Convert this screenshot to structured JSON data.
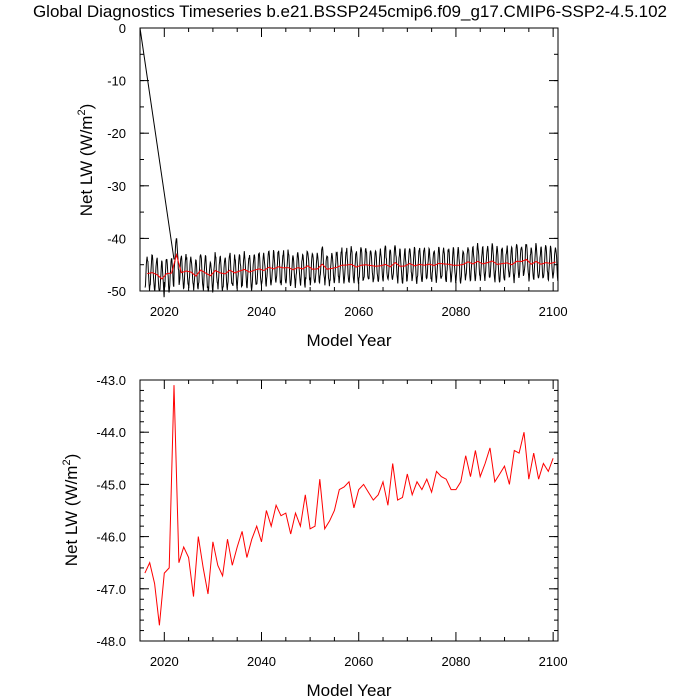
{
  "title": "Global Diagnostics Timeseries b.e21.BSSP245cmip6.f09_g17.CMIP6-SSP2-4.5.102",
  "chart_data": [
    {
      "type": "line",
      "name": "monthly-and-annual-net-lw",
      "xlabel": "Model Year",
      "ylabel": "Net LW (W/m",
      "ylabel_sup": "2",
      "ylabel_close": ")",
      "xlim": [
        2015,
        2101
      ],
      "ylim": [
        -50,
        0
      ],
      "xticks": [
        2020,
        2040,
        2060,
        2080,
        2100
      ],
      "xtick_labels": [
        "2020",
        "2040",
        "2060",
        "2080",
        "2100"
      ],
      "yticks": [
        0,
        -10,
        -20,
        -30,
        -40,
        -50
      ],
      "ytick_labels": [
        "0",
        "-10",
        "-20",
        "-30",
        "-40",
        "-50"
      ],
      "series": [
        {
          "name": "monthly",
          "color": "#000000",
          "description": "seasonal cycle oscillating roughly between -49 and -42, starting with a spurious spike from 0 in 2015 falling to about -44 by 2022",
          "spike": {
            "x": [
              2015.0,
              2022.0
            ],
            "y": [
              0,
              -44
            ]
          },
          "start_year": 2016,
          "end_year": 2100,
          "amplitude": 3.2
        },
        {
          "name": "annual mean",
          "color": "#ff0000",
          "source": "annual"
        }
      ]
    },
    {
      "type": "line",
      "name": "annual-net-lw",
      "xlabel": "Model Year",
      "ylabel": "Net LW (W/m",
      "ylabel_sup": "2",
      "ylabel_close": ")",
      "xlim": [
        2015,
        2101
      ],
      "ylim": [
        -48.0,
        -43.0
      ],
      "xticks": [
        2020,
        2040,
        2060,
        2080,
        2100
      ],
      "xtick_labels": [
        "2020",
        "2040",
        "2060",
        "2080",
        "2100"
      ],
      "yticks": [
        -43.0,
        -44.0,
        -45.0,
        -46.0,
        -47.0,
        -48.0
      ],
      "ytick_labels": [
        "-43.0",
        "-44.0",
        "-45.0",
        "-46.0",
        "-47.0",
        "-48.0"
      ],
      "series": [
        {
          "name": "annual",
          "color": "#ff0000",
          "x": [
            2016,
            2017,
            2018,
            2019,
            2020,
            2021,
            2022,
            2023,
            2024,
            2025,
            2026,
            2027,
            2028,
            2029,
            2030,
            2031,
            2032,
            2033,
            2034,
            2035,
            2036,
            2037,
            2038,
            2039,
            2040,
            2041,
            2042,
            2043,
            2044,
            2045,
            2046,
            2047,
            2048,
            2049,
            2050,
            2051,
            2052,
            2053,
            2054,
            2055,
            2056,
            2057,
            2058,
            2059,
            2060,
            2061,
            2062,
            2063,
            2064,
            2065,
            2066,
            2067,
            2068,
            2069,
            2070,
            2071,
            2072,
            2073,
            2074,
            2075,
            2076,
            2077,
            2078,
            2079,
            2080,
            2081,
            2082,
            2083,
            2084,
            2085,
            2086,
            2087,
            2088,
            2089,
            2090,
            2091,
            2092,
            2093,
            2094,
            2095,
            2096,
            2097,
            2098,
            2099,
            2100
          ],
          "y": [
            -46.7,
            -46.5,
            -46.9,
            -47.7,
            -46.7,
            -46.6,
            -43.1,
            -46.5,
            -46.2,
            -46.4,
            -47.15,
            -46.0,
            -46.6,
            -47.1,
            -46.1,
            -46.55,
            -46.75,
            -46.05,
            -46.55,
            -46.2,
            -45.9,
            -46.4,
            -46.05,
            -45.8,
            -46.1,
            -45.5,
            -45.8,
            -45.4,
            -45.6,
            -45.55,
            -45.95,
            -45.55,
            -45.8,
            -45.2,
            -45.85,
            -45.8,
            -44.9,
            -45.85,
            -45.7,
            -45.5,
            -45.1,
            -45.05,
            -44.95,
            -45.45,
            -45.1,
            -45.0,
            -45.15,
            -45.3,
            -45.2,
            -44.95,
            -45.4,
            -44.6,
            -45.3,
            -45.25,
            -44.8,
            -45.2,
            -44.95,
            -45.1,
            -44.9,
            -45.15,
            -44.75,
            -44.85,
            -44.9,
            -45.1,
            -45.1,
            -44.95,
            -44.45,
            -44.85,
            -44.35,
            -44.85,
            -44.6,
            -44.3,
            -44.95,
            -44.8,
            -44.65,
            -45.0,
            -44.35,
            -44.4,
            -44.0,
            -44.9,
            -44.4,
            -44.9,
            -44.6,
            -44.75,
            -44.5
          ]
        }
      ]
    }
  ]
}
